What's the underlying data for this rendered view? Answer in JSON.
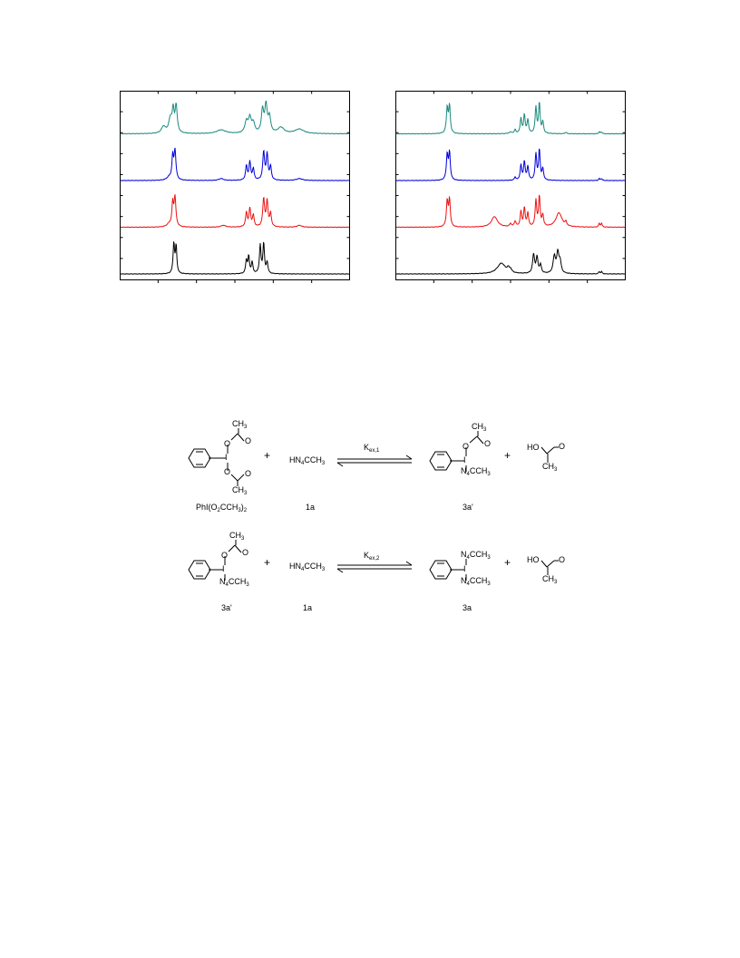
{
  "colors": {
    "teal": "#1a8a7e",
    "blue": "#0000dd",
    "red": "#ee1111",
    "black": "#000000"
  },
  "spectra_panels": [
    {
      "traces": [
        {
          "color": "teal",
          "peaks": [
            [
              0.19,
              0.18,
              2.6
            ],
            [
              0.22,
              0.38,
              2.2
            ],
            [
              0.245,
              0.72,
              1.4
            ],
            [
              0.232,
              0.55,
              1.2
            ],
            [
              0.44,
              0.1,
              6
            ],
            [
              0.55,
              0.3,
              2
            ],
            [
              0.565,
              0.38,
              1.8
            ],
            [
              0.58,
              0.26,
              1.8
            ],
            [
              0.62,
              0.6,
              1.5
            ],
            [
              0.635,
              0.72,
              1.5
            ],
            [
              0.65,
              0.42,
              1.6
            ],
            [
              0.7,
              0.16,
              4
            ],
            [
              0.78,
              0.12,
              6
            ]
          ]
        },
        {
          "color": "blue",
          "peaks": [
            [
              0.215,
              0.08,
              3
            ],
            [
              0.24,
              0.78,
              1.2
            ],
            [
              0.23,
              0.6,
              1.0
            ],
            [
              0.44,
              0.05,
              3
            ],
            [
              0.55,
              0.38,
              1.1
            ],
            [
              0.565,
              0.48,
              1.1
            ],
            [
              0.58,
              0.3,
              1.1
            ],
            [
              0.625,
              0.75,
              1.2
            ],
            [
              0.64,
              0.68,
              1.1
            ],
            [
              0.655,
              0.35,
              1.1
            ],
            [
              0.78,
              0.05,
              4
            ]
          ]
        },
        {
          "color": "red",
          "peaks": [
            [
              0.215,
              0.08,
              3
            ],
            [
              0.24,
              0.78,
              1.2
            ],
            [
              0.23,
              0.6,
              1.0
            ],
            [
              0.45,
              0.05,
              3
            ],
            [
              0.55,
              0.38,
              1.1
            ],
            [
              0.565,
              0.48,
              1.1
            ],
            [
              0.58,
              0.3,
              1.1
            ],
            [
              0.625,
              0.75,
              1.2
            ],
            [
              0.64,
              0.68,
              1.1
            ],
            [
              0.655,
              0.35,
              1.1
            ],
            [
              0.78,
              0.05,
              3
            ]
          ]
        },
        {
          "color": "black",
          "peaks": [
            [
              0.235,
              0.8,
              1.0
            ],
            [
              0.245,
              0.72,
              0.9
            ],
            [
              0.55,
              0.35,
              1.0
            ],
            [
              0.56,
              0.45,
              1.0
            ],
            [
              0.575,
              0.3,
              1.0
            ],
            [
              0.61,
              0.75,
              1.0
            ],
            [
              0.625,
              0.8,
              1.0
            ],
            [
              0.64,
              0.3,
              1.0
            ]
          ]
        }
      ]
    },
    {
      "traces": [
        {
          "color": "teal",
          "peaks": [
            [
              0.225,
              0.68,
              1.1
            ],
            [
              0.235,
              0.72,
              1.0
            ],
            [
              0.5,
              0.04,
              2
            ],
            [
              0.52,
              0.1,
              1
            ],
            [
              0.545,
              0.4,
              1
            ],
            [
              0.56,
              0.5,
              1
            ],
            [
              0.575,
              0.36,
              1
            ],
            [
              0.61,
              0.7,
              1
            ],
            [
              0.625,
              0.8,
              1
            ],
            [
              0.64,
              0.3,
              1
            ],
            [
              0.74,
              0.04,
              1
            ],
            [
              0.885,
              0.05,
              0.8
            ],
            [
              0.895,
              0.05,
              0.8
            ]
          ]
        },
        {
          "color": "blue",
          "peaks": [
            [
              0.225,
              0.68,
              1.1
            ],
            [
              0.235,
              0.72,
              1.0
            ],
            [
              0.52,
              0.08,
              1
            ],
            [
              0.545,
              0.4,
              1
            ],
            [
              0.56,
              0.5,
              1
            ],
            [
              0.575,
              0.36,
              1
            ],
            [
              0.61,
              0.7,
              1
            ],
            [
              0.625,
              0.8,
              1
            ],
            [
              0.64,
              0.3,
              1
            ],
            [
              0.885,
              0.05,
              0.8
            ],
            [
              0.895,
              0.05,
              0.8
            ]
          ]
        },
        {
          "color": "red",
          "peaks": [
            [
              0.225,
              0.68,
              1.1
            ],
            [
              0.235,
              0.72,
              1.0
            ],
            [
              0.43,
              0.28,
              4
            ],
            [
              0.5,
              0.08,
              1.2
            ],
            [
              0.52,
              0.14,
              1.2
            ],
            [
              0.545,
              0.4,
              1
            ],
            [
              0.56,
              0.5,
              1
            ],
            [
              0.575,
              0.36,
              1
            ],
            [
              0.61,
              0.7,
              1
            ],
            [
              0.625,
              0.8,
              1
            ],
            [
              0.64,
              0.3,
              1
            ],
            [
              0.71,
              0.38,
              4
            ],
            [
              0.74,
              0.1,
              1
            ],
            [
              0.885,
              0.1,
              0.8
            ],
            [
              0.895,
              0.1,
              0.8
            ]
          ]
        },
        {
          "color": "black",
          "peaks": [
            [
              0.46,
              0.28,
              5.5
            ],
            [
              0.49,
              0.1,
              1.5
            ],
            [
              0.5,
              0.08,
              1.5
            ],
            [
              0.6,
              0.5,
              1.3
            ],
            [
              0.615,
              0.42,
              1.2
            ],
            [
              0.63,
              0.22,
              1.2
            ],
            [
              0.69,
              0.45,
              1.6
            ],
            [
              0.705,
              0.52,
              1.4
            ],
            [
              0.715,
              0.3,
              1.4
            ],
            [
              0.885,
              0.06,
              0.8
            ],
            [
              0.895,
              0.06,
              0.8
            ]
          ]
        }
      ]
    }
  ],
  "scheme": {
    "reactions": [
      {
        "reactant1": {
          "top": "CH",
          "top_sub": "3",
          "bottom": "CH",
          "bottom_sub": "3",
          "caption_parts": [
            "PhI(O",
            "2",
            "CCH",
            "3",
            ")",
            "2"
          ]
        },
        "plus1": "+",
        "reactant2": {
          "parts": [
            "HN",
            "4",
            "CCH",
            "3"
          ],
          "caption": "1a"
        },
        "arrow_label": {
          "main": "K",
          "sub": "ex,1"
        },
        "product1": {
          "top": "CH",
          "top_sub": "3",
          "bottom_parts": [
            "N",
            "4",
            "CCH",
            "3"
          ],
          "caption": "3a'"
        },
        "plus2": "+",
        "product2": {
          "ho": "HO",
          "o": "O",
          "ch3": "CH",
          "ch3_sub": "3"
        }
      },
      {
        "reactant1": {
          "top": "CH",
          "top_sub": "3",
          "bottom_parts": [
            "N",
            "4",
            "CCH",
            "3"
          ],
          "caption": "3a'"
        },
        "plus1": "+",
        "reactant2": {
          "parts": [
            "HN",
            "4",
            "CCH",
            "3"
          ],
          "caption": "1a"
        },
        "arrow_label": {
          "main": "K",
          "sub": "ex,2"
        },
        "product1": {
          "top_parts": [
            "N",
            "4",
            "CCH",
            "3"
          ],
          "bottom_parts": [
            "N",
            "4",
            "CCH",
            "3"
          ],
          "caption": "3a"
        },
        "plus2": "+",
        "product2": {
          "ho": "HO",
          "o": "O",
          "ch3": "CH",
          "ch3_sub": "3"
        }
      }
    ]
  }
}
